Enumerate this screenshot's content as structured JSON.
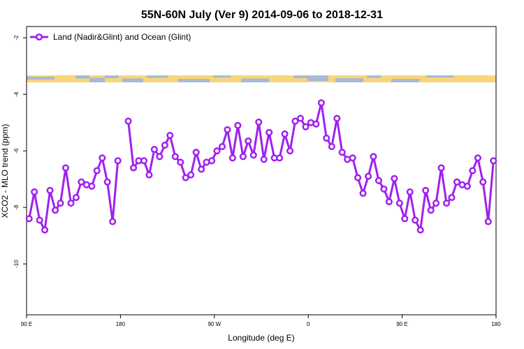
{
  "chart_data": {
    "type": "line",
    "title": "55N-60N July (Ver 9)   2014-09-06 to 2018-12-31",
    "xlabel": "Longitude (deg E)",
    "ylabel": "XCO2 - MLO trend (ppm)",
    "x_ticks": [
      "90 E",
      "180",
      "90 W",
      "0",
      "90 E",
      "180"
    ],
    "y_ticks": [
      "-2",
      "-4",
      "-6",
      "-8",
      "-10"
    ],
    "xlim": [
      90,
      540
    ],
    "ylim": [
      -11.8,
      -1.6
    ],
    "grid": false,
    "legend_position": "top-left",
    "line_color": "#a020f0",
    "map_strip_colors": {
      "land": "#f6d678",
      "ocean": "#a7b9d6"
    },
    "series": [
      {
        "name": "Land (Nadir&Glint) and Ocean (Glint)",
        "x": [
          92.5,
          97.5,
          102.5,
          107.5,
          112.5,
          117.5,
          122.5,
          127.5,
          132.5,
          137.5,
          142.5,
          147.5,
          152.5,
          157.5,
          162.5,
          167.5,
          172.5,
          177.5,
          182.5,
          187.5,
          192.5,
          197.5,
          202.5,
          207.5,
          212.5,
          217.5,
          222.5,
          227.5,
          232.5,
          237.5,
          242.5,
          247.5,
          252.5,
          257.5,
          262.5,
          267.5,
          272.5,
          277.5,
          282.5,
          287.5,
          292.5,
          297.5,
          302.5,
          307.5,
          312.5,
          317.5,
          322.5,
          327.5,
          332.5,
          337.5,
          342.5,
          347.5,
          352.5,
          357.5,
          362.5,
          367.5,
          372.5,
          377.5,
          382.5,
          387.5,
          392.5,
          397.5,
          402.5,
          407.5,
          412.5,
          417.5,
          422.5,
          427.5,
          432.5,
          437.5,
          442.5,
          447.5,
          452.5,
          457.5,
          462.5,
          467.5,
          472.5,
          477.5,
          482.5,
          487.5,
          492.5,
          497.5,
          502.5,
          507.5,
          512.5,
          517.5,
          522.5,
          527.5,
          532.5,
          537.5
        ],
        "y": [
          -8.4,
          -7.45,
          -8.45,
          -8.8,
          -7.4,
          -8.1,
          -7.85,
          -6.6,
          -7.85,
          -7.65,
          -7.1,
          -7.2,
          -7.25,
          -6.7,
          -6.25,
          -7.1,
          -8.5,
          -6.35,
          null,
          -4.95,
          -6.6,
          -6.35,
          -6.35,
          -6.85,
          -5.95,
          -6.2,
          -5.8,
          -5.45,
          -6.2,
          -6.4,
          -6.95,
          -6.85,
          -6.05,
          -6.65,
          -6.4,
          -6.35,
          -6.0,
          -5.85,
          -5.25,
          -6.25,
          -5.1,
          -6.2,
          -5.65,
          -6.15,
          -4.98,
          -6.3,
          -5.35,
          -6.25,
          -6.25,
          -5.4,
          -6.0,
          -4.95,
          -4.85,
          -5.15,
          -5.0,
          -5.05,
          -4.3,
          -5.55,
          -5.85,
          -4.85,
          -6.05,
          -6.3,
          -6.25,
          -6.95,
          -7.5,
          -6.9,
          -6.2,
          -7.05,
          -7.35,
          -7.8,
          -6.98,
          -7.85,
          -8.4,
          -7.45,
          -8.45,
          -8.8,
          -7.4,
          -8.1,
          -7.85,
          -6.6,
          -7.85,
          -7.65,
          -7.1,
          -7.2,
          -7.25,
          -6.7,
          -6.25,
          -7.1,
          -8.5,
          -6.35
        ]
      }
    ]
  }
}
